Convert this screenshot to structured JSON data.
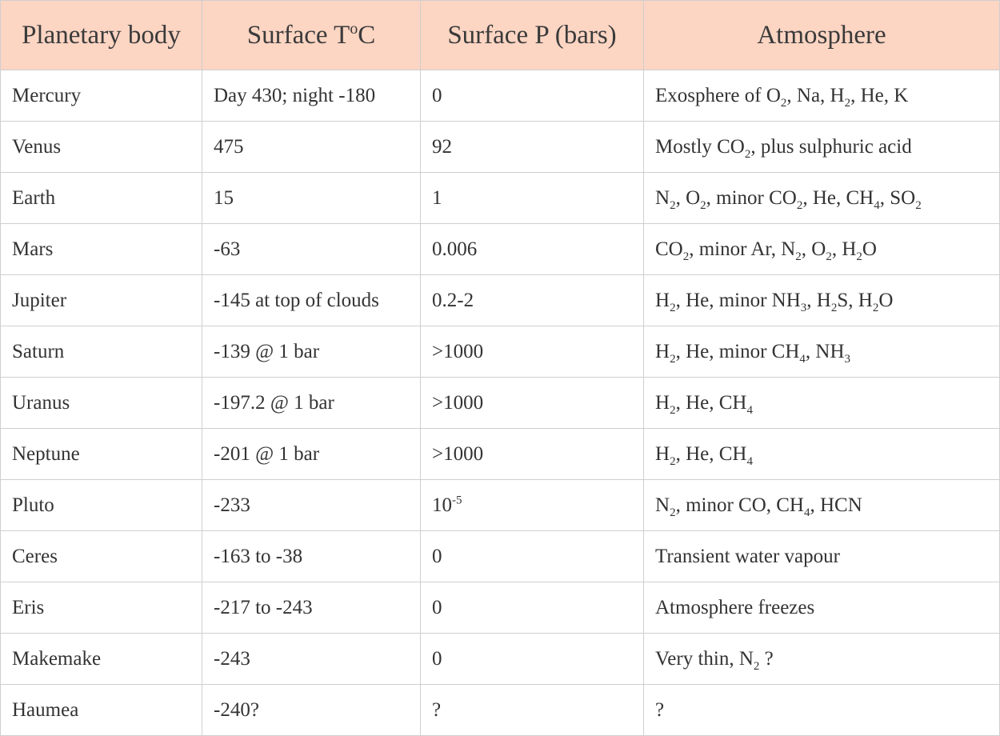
{
  "table": {
    "headers": [
      "Planetary body",
      "Surface T°C",
      "Surface P (bars)",
      "Atmosphere"
    ],
    "rows": [
      {
        "body": "Mercury",
        "temp": "Day 430; night -180",
        "pressure": "0",
        "atmosphere": "Exosphere of O₂, Na, H₂, He, K"
      },
      {
        "body": "Venus",
        "temp": "475",
        "pressure": "92",
        "atmosphere": "Mostly CO₂, plus sulphuric acid"
      },
      {
        "body": "Earth",
        "temp": "15",
        "pressure": "1",
        "atmosphere": "N₂, O₂, minor CO₂, He, CH₄, SO₂"
      },
      {
        "body": "Mars",
        "temp": "-63",
        "pressure": "0.006",
        "atmosphere": "CO₂, minor Ar, N₂, O₂, H₂O"
      },
      {
        "body": "Jupiter",
        "temp": "-145 at top of clouds",
        "pressure": "0.2-2",
        "atmosphere": "H₂, He, minor NH₃, H₂S, H₂O"
      },
      {
        "body": "Saturn",
        "temp": "-139 @ 1 bar",
        "pressure": ">1000",
        "atmosphere": "H₂, He, minor CH₄, NH₃"
      },
      {
        "body": "Uranus",
        "temp": "-197.2 @ 1 bar",
        "pressure": ">1000",
        "atmosphere": "H₂, He, CH₄"
      },
      {
        "body": "Neptune",
        "temp": "-201 @ 1 bar",
        "pressure": ">1000",
        "atmosphere": "H₂, He, CH₄"
      },
      {
        "body": "Pluto",
        "temp": "-233",
        "pressure": "10⁻⁵",
        "atmosphere": "N₂, minor CO, CH₄, HCN"
      },
      {
        "body": "Ceres",
        "temp": "-163 to -38",
        "pressure": "0",
        "atmosphere": "Transient water vapour"
      },
      {
        "body": "Eris",
        "temp": "-217 to -243",
        "pressure": "0",
        "atmosphere": "Atmosphere freezes"
      },
      {
        "body": "Makemake",
        "temp": "-243",
        "pressure": "0",
        "atmosphere": "Very thin, N₂ ?"
      },
      {
        "body": "Haumea",
        "temp": "-240?",
        "pressure": "?",
        "atmosphere": "?"
      }
    ]
  },
  "colors": {
    "header_background": "#fcd5c3",
    "grid_line": "#cfcfcf",
    "text": "#333333"
  }
}
